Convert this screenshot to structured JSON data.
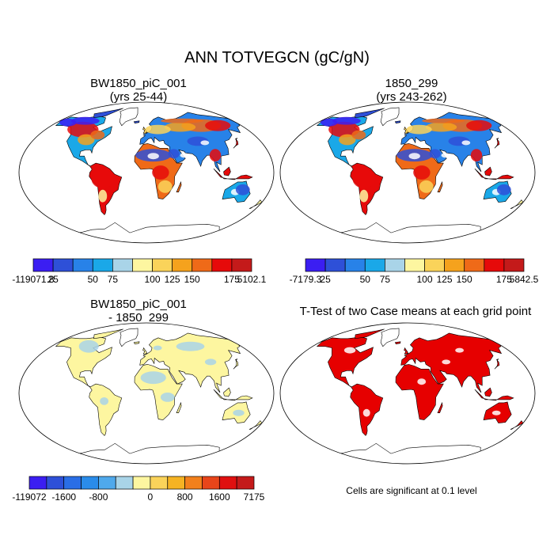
{
  "title": "ANN TOTVEGCN (gC/gN)",
  "colors": {
    "ocean": "#ffffff",
    "outline": "#000000",
    "scale11": [
      "#3b1ef2",
      "#2e50d8",
      "#2882e8",
      "#1aa8e8",
      "#a9d4e8",
      "#fdf6a0",
      "#fad35a",
      "#f5a21d",
      "#ef6a18",
      "#e60a0a",
      "#c41a1a"
    ],
    "scale13": [
      "#3b1ef2",
      "#2e50d8",
      "#2a6ee6",
      "#2a8cea",
      "#4fa9ec",
      "#a9d4e8",
      "#fdf6a0",
      "#fad35a",
      "#f5b323",
      "#f2801c",
      "#e8451a",
      "#e01010",
      "#c41a1a"
    ],
    "ttest": "#e60000"
  },
  "panels": [
    {
      "title_line1": "BW1850_piC_001",
      "title_line2": "(yrs 25-44)",
      "map": "field"
    },
    {
      "title_line1": "1850_299",
      "title_line2": "(yrs 243-262)",
      "map": "field"
    },
    {
      "title_line1": "BW1850_piC_001",
      "title_line2": "- 1850_299",
      "map": "difference"
    },
    {
      "title_line1": "T-Test of two Case means at each grid point",
      "title_line2": "",
      "map": "ttest"
    }
  ],
  "colorbars": [
    {
      "name": "colorbar-case1",
      "labels": [
        "-119071.8",
        "25",
        "50",
        "75",
        "100",
        "125",
        "150",
        "175",
        "5102.1"
      ]
    },
    {
      "name": "colorbar-case2",
      "labels": [
        "-7179.3",
        "25",
        "50",
        "75",
        "100",
        "125",
        "150",
        "175",
        "5842.5"
      ]
    },
    {
      "name": "colorbar-diff",
      "labels": [
        "-119072",
        "-1600",
        "-800",
        "0",
        "800",
        "1600",
        "7175"
      ]
    }
  ],
  "note": "Cells are significant at 0.1 level",
  "chart_data": {
    "type": "heatmap",
    "projection": "Robinson (global)",
    "variable": "TOTVEGCN",
    "units": "gC/gN",
    "season": "ANN",
    "case1": {
      "name": "BW1850_piC_001",
      "years": "yrs 25-44",
      "min": -119071.8,
      "max": 5102.1,
      "levels": [
        25,
        50,
        75,
        100,
        125,
        150,
        175
      ]
    },
    "case2": {
      "name": "1850_299",
      "years": "yrs 243-262",
      "min": -7179.3,
      "max": 5842.5,
      "levels": [
        25,
        50,
        75,
        100,
        125,
        150,
        175
      ]
    },
    "difference": {
      "name": "BW1850_piC_001 - 1850_299",
      "min": -119072,
      "max": 7175,
      "levels": [
        -1600,
        -800,
        0,
        800,
        1600
      ]
    },
    "ttest": {
      "title": "T-Test of two Case means at each grid point",
      "significance_level": 0.1
    }
  }
}
